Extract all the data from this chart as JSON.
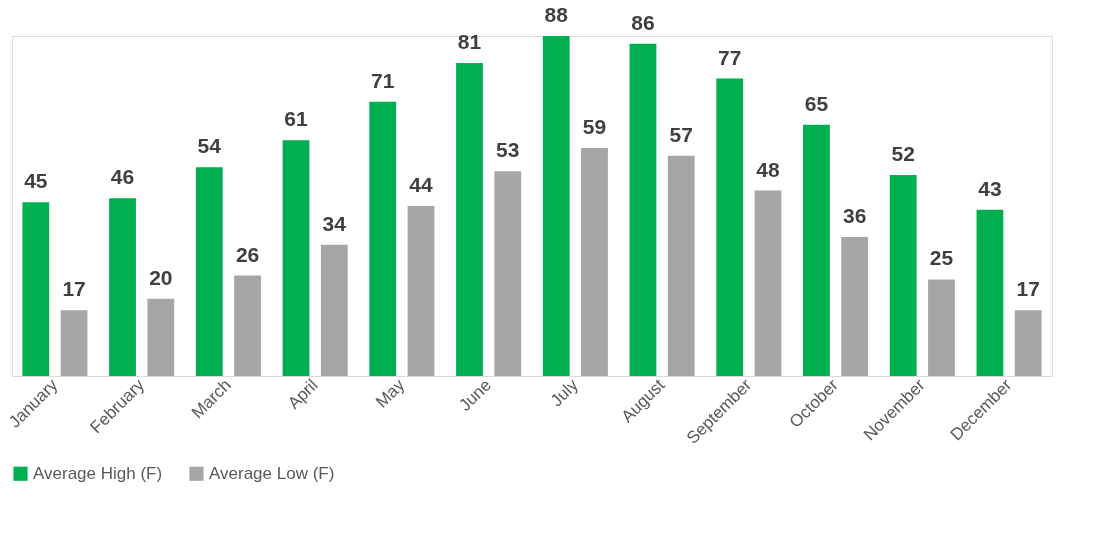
{
  "chart_data": {
    "type": "bar",
    "categories": [
      "January",
      "February",
      "March",
      "April",
      "May",
      "June",
      "July",
      "August",
      "September",
      "October",
      "November",
      "December"
    ],
    "series": [
      {
        "name": "Average High (F)",
        "color": "#00b050",
        "values": [
          45,
          46,
          54,
          61,
          71,
          81,
          88,
          86,
          77,
          65,
          52,
          43
        ]
      },
      {
        "name": "Average Low (F)",
        "color": "#a6a6a6",
        "values": [
          17,
          20,
          26,
          34,
          44,
          53,
          59,
          57,
          48,
          36,
          25,
          17
        ]
      }
    ],
    "data_labels": true,
    "legend": "bottom",
    "grid": false,
    "tick_labels": "x"
  }
}
